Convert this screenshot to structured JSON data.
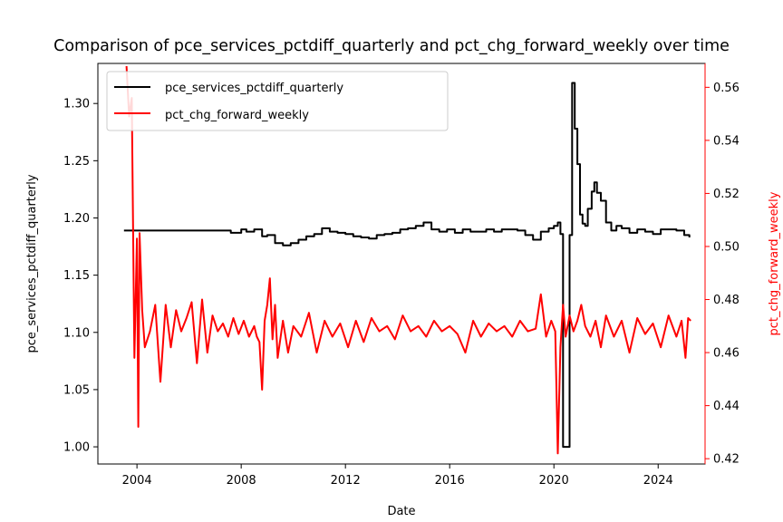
{
  "chart_data": {
    "type": "line",
    "title": "Comparison of pce_services_pctdiff_quarterly and pct_chg_forward_weekly over time",
    "xlabel": "Date",
    "ylabel_left": "pce_services_pctdiff_quarterly",
    "ylabel_right": "pct_chg_forward_weekly",
    "xlim": [
      2002.5,
      2025.8
    ],
    "ylim_left": [
      0.985,
      1.335
    ],
    "ylim_right": [
      0.418,
      0.569
    ],
    "x_ticks": [
      "2004",
      "2008",
      "2012",
      "2016",
      "2020",
      "2024"
    ],
    "y_ticks_left": [
      "1.00",
      "1.05",
      "1.10",
      "1.15",
      "1.20",
      "1.25",
      "1.30"
    ],
    "y_ticks_right": [
      "0.42",
      "0.44",
      "0.46",
      "0.48",
      "0.50",
      "0.52",
      "0.54",
      "0.56"
    ],
    "legend_position": "top-left",
    "grid": false,
    "colors": {
      "left_series": "#000000",
      "right_series": "#ff0000"
    },
    "series": [
      {
        "name": "pce_services_pctdiff_quarterly",
        "axis": "left",
        "color": "#000000",
        "step": true,
        "x": [
          2003.5,
          2007.4,
          2007.6,
          2008.0,
          2008.2,
          2008.5,
          2008.8,
          2009.0,
          2009.3,
          2009.6,
          2009.9,
          2010.2,
          2010.5,
          2010.8,
          2011.1,
          2011.4,
          2011.7,
          2012.0,
          2012.3,
          2012.6,
          2012.9,
          2013.2,
          2013.5,
          2013.8,
          2014.1,
          2014.4,
          2014.7,
          2015.0,
          2015.3,
          2015.6,
          2015.9,
          2016.2,
          2016.5,
          2016.8,
          2017.1,
          2017.4,
          2017.7,
          2018.0,
          2018.3,
          2018.6,
          2018.9,
          2019.2,
          2019.5,
          2019.8,
          2020.0,
          2020.15,
          2020.25,
          2020.35,
          2020.5,
          2020.6,
          2020.7,
          2020.8,
          2020.9,
          2021.0,
          2021.1,
          2021.2,
          2021.3,
          2021.45,
          2021.55,
          2021.65,
          2021.8,
          2022.0,
          2022.2,
          2022.4,
          2022.6,
          2022.9,
          2023.2,
          2023.5,
          2023.8,
          2024.1,
          2024.4,
          2024.7,
          2025.0,
          2025.2
        ],
        "y": [
          1.189,
          1.189,
          1.187,
          1.19,
          1.188,
          1.19,
          1.184,
          1.185,
          1.178,
          1.176,
          1.178,
          1.181,
          1.184,
          1.186,
          1.191,
          1.188,
          1.187,
          1.186,
          1.184,
          1.183,
          1.182,
          1.185,
          1.186,
          1.187,
          1.19,
          1.191,
          1.193,
          1.196,
          1.19,
          1.188,
          1.19,
          1.187,
          1.19,
          1.188,
          1.188,
          1.19,
          1.188,
          1.19,
          1.19,
          1.189,
          1.185,
          1.181,
          1.188,
          1.191,
          1.193,
          1.196,
          1.186,
          1.0,
          1.0,
          1.185,
          1.318,
          1.278,
          1.247,
          1.203,
          1.195,
          1.193,
          1.208,
          1.223,
          1.231,
          1.222,
          1.215,
          1.196,
          1.189,
          1.193,
          1.191,
          1.187,
          1.19,
          1.188,
          1.186,
          1.19,
          1.19,
          1.189,
          1.185,
          1.183
        ]
      },
      {
        "name": "pct_chg_forward_weekly",
        "axis": "right",
        "color": "#ff0000",
        "x": [
          2003.6,
          2003.7,
          2003.8,
          2003.9,
          2004.0,
          2004.05,
          2004.1,
          2004.2,
          2004.3,
          2004.5,
          2004.7,
          2004.9,
          2005.1,
          2005.3,
          2005.5,
          2005.7,
          2005.9,
          2006.1,
          2006.3,
          2006.5,
          2006.7,
          2006.9,
          2007.1,
          2007.3,
          2007.5,
          2007.7,
          2007.9,
          2008.1,
          2008.3,
          2008.5,
          2008.6,
          2008.7,
          2008.8,
          2008.9,
          2009.0,
          2009.1,
          2009.2,
          2009.3,
          2009.4,
          2009.6,
          2009.8,
          2010.0,
          2010.3,
          2010.6,
          2010.9,
          2011.2,
          2011.5,
          2011.8,
          2012.1,
          2012.4,
          2012.7,
          2013.0,
          2013.3,
          2013.6,
          2013.9,
          2014.2,
          2014.5,
          2014.8,
          2015.1,
          2015.4,
          2015.7,
          2016.0,
          2016.3,
          2016.6,
          2016.9,
          2017.2,
          2017.5,
          2017.8,
          2018.1,
          2018.4,
          2018.7,
          2019.0,
          2019.3,
          2019.5,
          2019.7,
          2019.9,
          2020.05,
          2020.15,
          2020.25,
          2020.35,
          2020.45,
          2020.6,
          2020.75,
          2020.9,
          2021.05,
          2021.2,
          2021.4,
          2021.6,
          2021.8,
          2022.0,
          2022.3,
          2022.6,
          2022.9,
          2023.2,
          2023.5,
          2023.8,
          2024.1,
          2024.4,
          2024.7,
          2024.9,
          2025.05,
          2025.15,
          2025.25
        ],
        "y": [
          0.568,
          0.549,
          0.556,
          0.458,
          0.503,
          0.432,
          0.505,
          0.476,
          0.462,
          0.468,
          0.478,
          0.449,
          0.478,
          0.462,
          0.476,
          0.468,
          0.473,
          0.479,
          0.456,
          0.48,
          0.46,
          0.474,
          0.468,
          0.471,
          0.466,
          0.473,
          0.467,
          0.472,
          0.466,
          0.47,
          0.466,
          0.464,
          0.446,
          0.472,
          0.478,
          0.488,
          0.465,
          0.478,
          0.458,
          0.472,
          0.46,
          0.47,
          0.466,
          0.475,
          0.46,
          0.472,
          0.466,
          0.471,
          0.462,
          0.472,
          0.464,
          0.473,
          0.468,
          0.47,
          0.465,
          0.474,
          0.468,
          0.47,
          0.466,
          0.472,
          0.468,
          0.47,
          0.467,
          0.46,
          0.472,
          0.466,
          0.471,
          0.468,
          0.47,
          0.466,
          0.472,
          0.468,
          0.469,
          0.482,
          0.466,
          0.472,
          0.468,
          0.422,
          0.462,
          0.478,
          0.466,
          0.474,
          0.468,
          0.472,
          0.478,
          0.47,
          0.466,
          0.472,
          0.462,
          0.474,
          0.466,
          0.472,
          0.46,
          0.473,
          0.467,
          0.471,
          0.462,
          0.474,
          0.466,
          0.472,
          0.458,
          0.473,
          0.472
        ]
      }
    ]
  }
}
